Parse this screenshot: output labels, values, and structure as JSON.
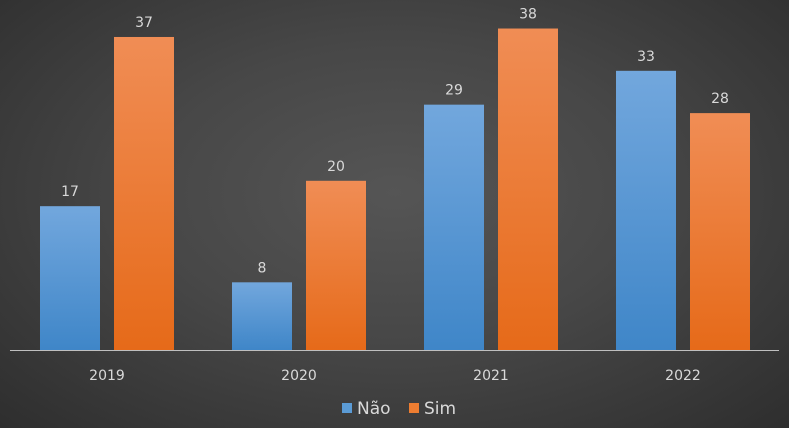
{
  "chart_data": {
    "type": "bar",
    "categories": [
      "2019",
      "2020",
      "2021",
      "2022"
    ],
    "series": [
      {
        "name": "Não",
        "values": [
          17,
          8,
          29,
          33
        ],
        "color": "#5b9bd5"
      },
      {
        "name": "Sim",
        "values": [
          37,
          20,
          38,
          28
        ],
        "color": "#ed7d31"
      }
    ],
    "data_labels": true,
    "grid": false,
    "legend": "bottom",
    "ylim": [
      0,
      41
    ]
  }
}
